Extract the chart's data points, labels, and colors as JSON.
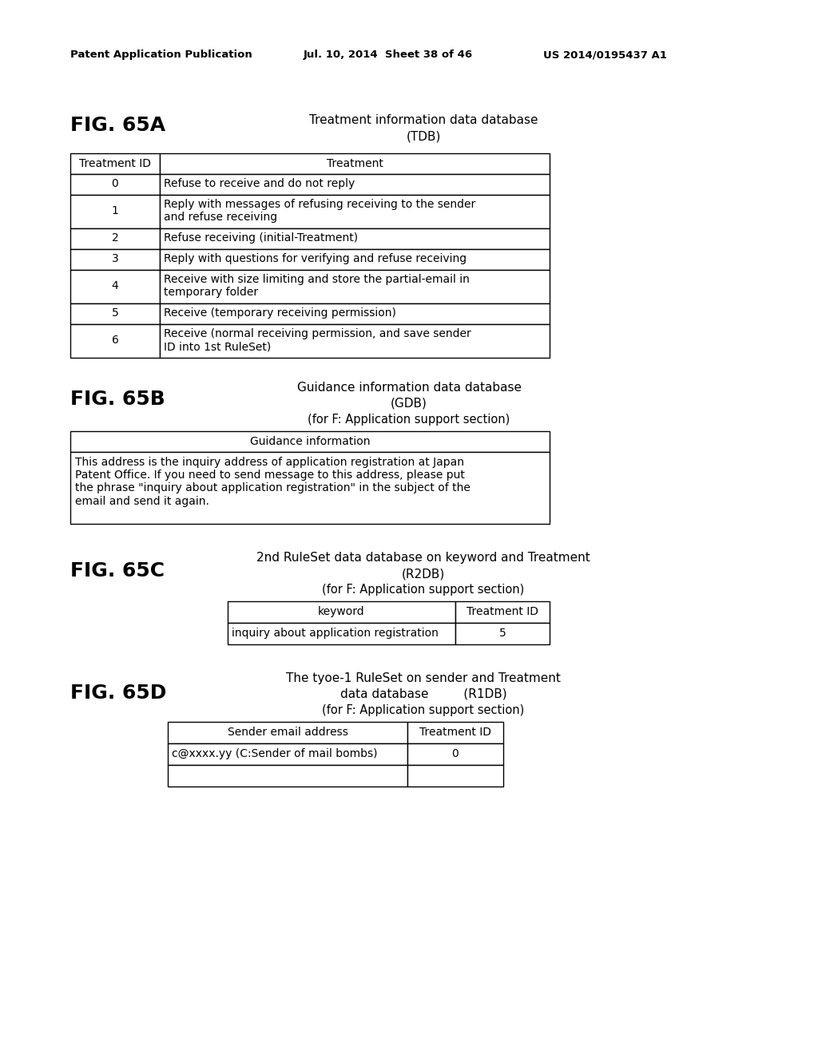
{
  "background_color": "#ffffff",
  "header_text_left": "Patent Application Publication",
  "header_text_mid": "Jul. 10, 2014  Sheet 38 of 46",
  "header_text_right": "US 2014/0195437 A1",
  "fig65a_label": "FIG. 65A",
  "fig65a_title1": "Treatment information data database",
  "fig65a_title2": "(TDB)",
  "fig65a_col1_header": "Treatment ID",
  "fig65a_col2_header": "Treatment",
  "fig65a_rows": [
    [
      "0",
      "Refuse to receive and do not reply"
    ],
    [
      "1",
      "Reply with messages of refusing receiving to the sender\nand refuse receiving"
    ],
    [
      "2",
      "Refuse receiving (initial-Treatment)"
    ],
    [
      "3",
      "Reply with questions for verifying and refuse receiving"
    ],
    [
      "4",
      "Receive with size limiting and store the partial-email in\ntemporary folder"
    ],
    [
      "5",
      "Receive (temporary receiving permission)"
    ],
    [
      "6",
      "Receive (normal receiving permission, and save sender\nID into 1st RuleSet)"
    ]
  ],
  "fig65a_row_heights": [
    26,
    42,
    26,
    26,
    42,
    26,
    42
  ],
  "fig65b_label": "FIG. 65B",
  "fig65b_title1": "Guidance information data database",
  "fig65b_title2": "(GDB)",
  "fig65b_title3": "(for F: Application support section)",
  "fig65b_col_header": "Guidance information",
  "fig65b_content": "This address is the inquiry address of application registration at Japan\nPatent Office. If you need to send message to this address, please put\nthe phrase \"inquiry about application registration\" in the subject of the\nemail and send it again.",
  "fig65c_label": "FIG. 65C",
  "fig65c_title1": "2nd RuleSet data database on keyword and Treatment",
  "fig65c_title2": "(R2DB)",
  "fig65c_title3": "(for F: Application support section)",
  "fig65c_col1_header": "keyword",
  "fig65c_col2_header": "Treatment ID",
  "fig65c_rows": [
    [
      "inquiry about application registration",
      "5"
    ]
  ],
  "fig65d_label": "FIG. 65D",
  "fig65d_title1": "The tyoe-1 RuleSet on sender and Treatment",
  "fig65d_title2": "data database         (R1DB)",
  "fig65d_title3": "(for F: Application support section)",
  "fig65d_col1_header": "Sender email address",
  "fig65d_col2_header": "Treatment ID",
  "fig65d_rows": [
    [
      "c@xxxx.yy (C:Sender of mail bombs)",
      "0"
    ],
    [
      "",
      ""
    ]
  ],
  "tbl_lw": 1.0
}
